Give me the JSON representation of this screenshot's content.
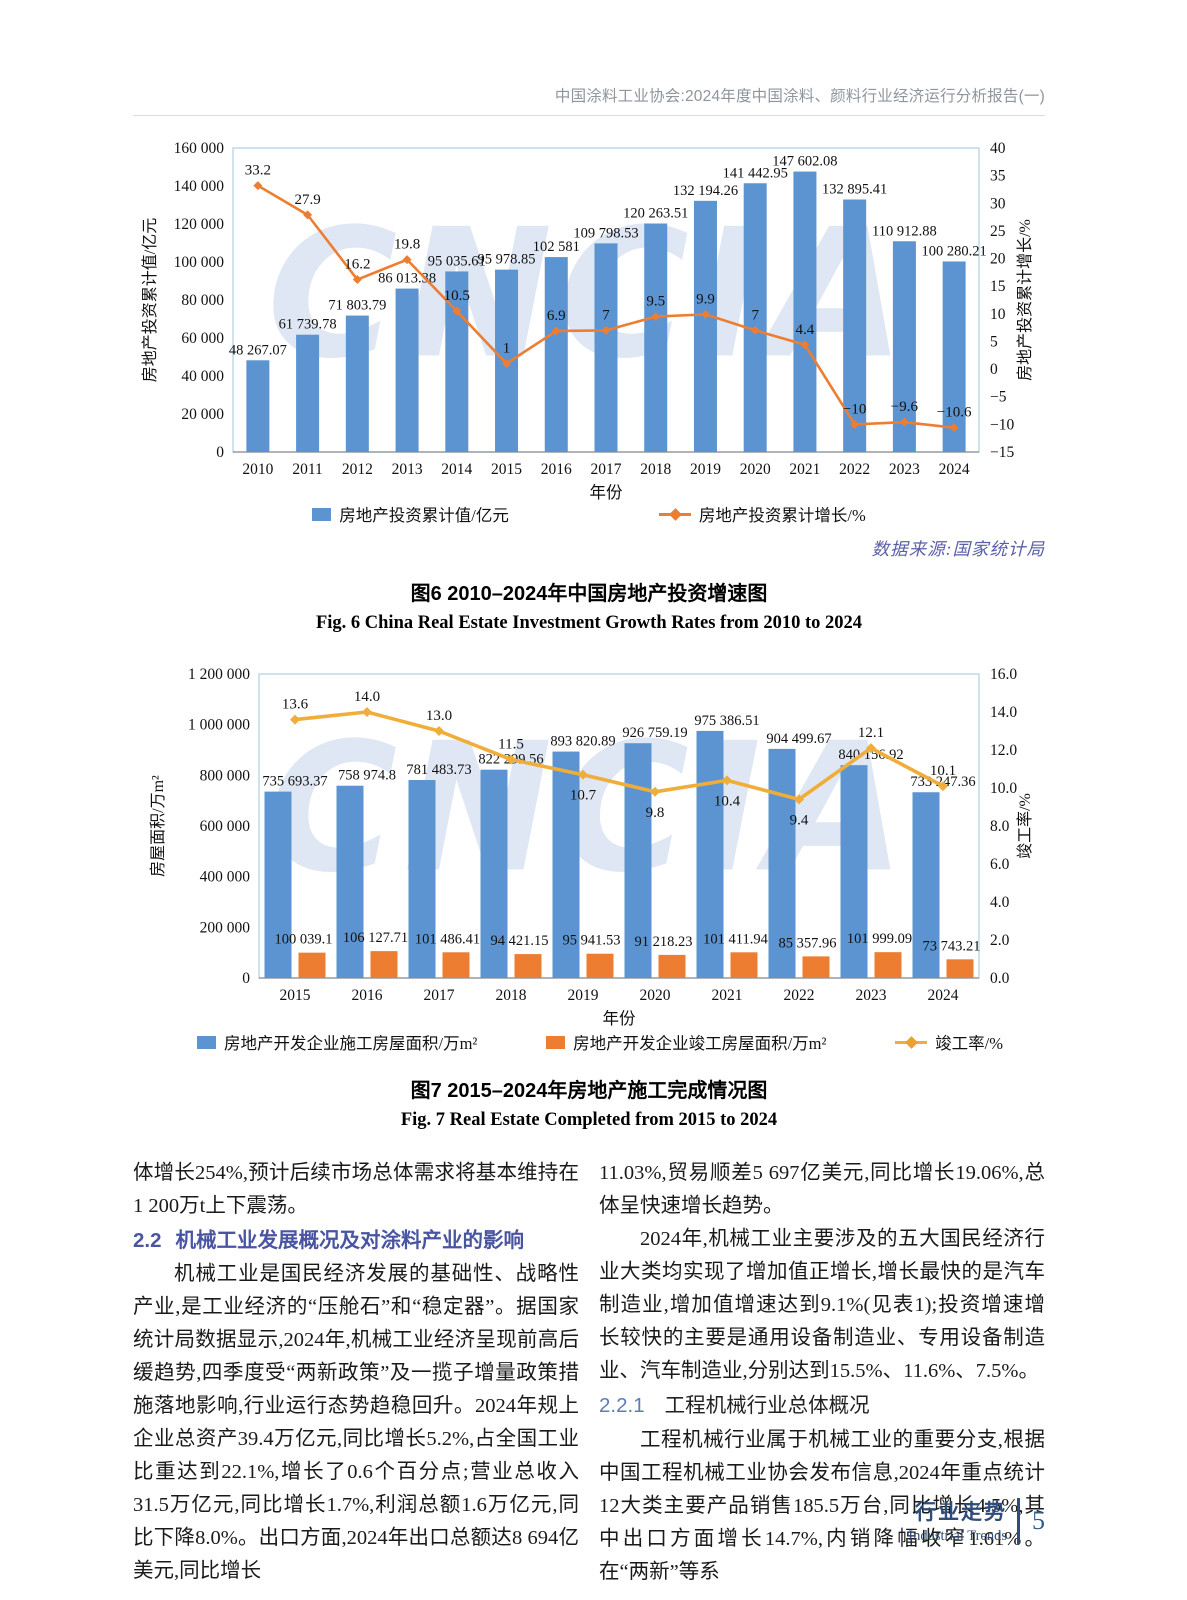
{
  "header": {
    "text": "中国涂料工业协会:2024年度中国涂料、颜料行业经济运行分析报告(一)"
  },
  "watermark": "CNCIA",
  "colors": {
    "bar_blue": "#5b94d0",
    "bar_orange": "#ed7d31",
    "line_orange": "#ed7d31",
    "line_gold": "#f0ad3a",
    "heading_blue": "#4a55a2",
    "source_purple": "#5a5fa7",
    "footer_navy": "#2e4d79",
    "watermark_blue": "#dfe7f4"
  },
  "chart_data": [
    {
      "type": "bar",
      "categories": [
        "2010",
        "2011",
        "2012",
        "2013",
        "2014",
        "2015",
        "2016",
        "2017",
        "2018",
        "2019",
        "2020",
        "2021",
        "2022",
        "2023",
        "2024"
      ],
      "xlabel": "年份",
      "ylabel_left": "房地产投资累计值/亿元",
      "ylabel_right": "房地产投资累计增长/%",
      "ylim_left": [
        0,
        160000
      ],
      "ytick_step_left": 20000,
      "ylim_right": [
        -15,
        40
      ],
      "ytick_step_right": 5,
      "grid": false,
      "legend_position": "bottom",
      "source": "数据来源:国家统计局",
      "series": [
        {
          "name": "房地产投资累计值/亿元",
          "kind": "bar",
          "axis": "left",
          "color": "#5b94d0",
          "values": [
            48267.07,
            61739.78,
            71803.79,
            86013.38,
            95035.61,
            95978.85,
            102581,
            109798.53,
            120263.51,
            132194.26,
            141442.95,
            147602.08,
            132895.41,
            110912.88,
            100280.21
          ],
          "labels": [
            "48 267.07",
            "61 739.78",
            "71 803.79",
            "86 013.38",
            "95 035.61",
            "95 978.85",
            "102 581",
            "109 798.53",
            "120 263.51",
            "132 194.26",
            "141 442.95",
            "147 602.08",
            "132 895.41",
            "110 912.88",
            "100 280.21"
          ]
        },
        {
          "name": "房地产投资累计增长/%",
          "kind": "line",
          "axis": "right",
          "color": "#ed7d31",
          "values": [
            33.2,
            27.9,
            16.2,
            19.8,
            10.5,
            1,
            6.9,
            7,
            9.5,
            9.9,
            7,
            4.4,
            -10,
            -9.6,
            -10.6
          ],
          "labels": [
            "33.2",
            "27.9",
            "16.2",
            "19.8",
            "10.5",
            "1",
            "6.9",
            "7",
            "9.5",
            "9.9",
            "7",
            "4.4",
            "−10",
            "−9.6",
            "−10.6"
          ],
          "label_side": [
            "above",
            "above",
            "above",
            "above",
            "above",
            "above",
            "above",
            "above",
            "above",
            "above",
            "above",
            "above",
            "above",
            "above",
            "above"
          ]
        }
      ]
    },
    {
      "type": "bar",
      "categories": [
        "2015",
        "2016",
        "2017",
        "2018",
        "2019",
        "2020",
        "2021",
        "2022",
        "2023",
        "2024"
      ],
      "xlabel": "年份",
      "ylabel_left": "房屋面积/万m²",
      "ylabel_right": "竣工率/%",
      "ylim_left": [
        0,
        1200000
      ],
      "ytick_step_left": 200000,
      "ylim_right": [
        0,
        16
      ],
      "ytick_step_right": 2,
      "grid": false,
      "legend_position": "bottom",
      "series": [
        {
          "name": "房地产开发企业施工房屋面积/万m²",
          "kind": "bar",
          "axis": "left",
          "color": "#5b94d0",
          "values": [
            735693.37,
            758974.8,
            781483.73,
            822299.56,
            893820.89,
            926759.19,
            975386.51,
            904499.67,
            840156.92,
            733247.36
          ],
          "labels": [
            "735 693.37",
            "758 974.8",
            "781 483.73",
            "822 299.56",
            "893 820.89",
            "926 759.19",
            "975 386.51",
            "904 499.67",
            "840 156.92",
            "733 247.36"
          ]
        },
        {
          "name": "房地产开发企业竣工房屋面积/万m²",
          "kind": "bar",
          "axis": "left",
          "color": "#ed7d31",
          "values": [
            100039.1,
            106127.71,
            101486.41,
            94421.15,
            95941.53,
            91218.23,
            101411.94,
            85357.96,
            101999.09,
            73743.21
          ],
          "labels": [
            "100 039.1",
            "106 127.71",
            "101 486.41",
            "94 421.15",
            "95 941.53",
            "91 218.23",
            "101 411.94",
            "85 357.96",
            "101 999.09",
            "73 743.21"
          ]
        },
        {
          "name": "竣工率/%",
          "kind": "line",
          "axis": "right",
          "color": "#f0ad3a",
          "values": [
            13.6,
            14.0,
            13.0,
            11.5,
            10.7,
            9.8,
            10.4,
            9.4,
            12.1,
            10.1
          ],
          "labels": [
            "13.6",
            "14.0",
            "13.0",
            "11.5",
            "10.7",
            "9.8",
            "10.4",
            "9.4",
            "12.1",
            "10.1"
          ],
          "label_side": [
            "above",
            "above",
            "above",
            "above",
            "below",
            "below",
            "below",
            "below",
            "above",
            "above"
          ]
        }
      ]
    }
  ],
  "figures": {
    "fig6": {
      "caption_cn": "图6  2010–2024年中国房地产投资增速图",
      "caption_en": "Fig. 6  China Real Estate Investment Growth Rates from 2010 to 2024"
    },
    "fig7": {
      "caption_cn": "图7  2015–2024年房地产施工完成情况图",
      "caption_en": "Fig. 7  Real Estate Completed from 2015 to 2024"
    }
  },
  "body": {
    "left": [
      {
        "type": "para",
        "indent": false,
        "text": "体增长254%,预计后续市场总体需求将基本维持在1 200万t上下震荡。"
      },
      {
        "type": "heading",
        "level": "main",
        "number": "2.2",
        "text": "机械工业发展概况及对涂料产业的影响"
      },
      {
        "type": "para",
        "indent": true,
        "text": "机械工业是国民经济发展的基础性、战略性产业,是工业经济的“压舱石”和“稳定器”。据国家统计局数据显示,2024年,机械工业经济呈现前高后缓趋势,四季度受“两新政策”及一揽子增量政策措施落地影响,行业运行态势趋稳回升。2024年规上企业总资产39.4万亿元,同比增长5.2%,占全国工业比重达到22.1%,增长了0.6个百分点;营业总收入31.5万亿元,同比增长1.7%,利润总额1.6万亿元,同比下降8.0%。出口方面,2024年出口总额达8 694亿美元,同比增长"
      }
    ],
    "right": [
      {
        "type": "para",
        "indent": false,
        "text": "11.03%,贸易顺差5 697亿美元,同比增长19.06%,总体呈快速增长趋势。"
      },
      {
        "type": "para",
        "indent": true,
        "text": "2024年,机械工业主要涉及的五大国民经济行业大类均实现了增加值正增长,增长最快的是汽车制造业,增加值增速达到9.1%(见表1);投资增速增长较快的主要是通用设备制造业、专用设备制造业、汽车制造业,分别达到15.5%、11.6%、7.5%。"
      },
      {
        "type": "heading",
        "level": "sub",
        "number": "2.2.1",
        "text": "工程机械行业总体概况"
      },
      {
        "type": "para",
        "indent": true,
        "text": "工程机械行业属于机械工业的重要分支,根据中国工程机械工业协会发布信息,2024年重点统计12大类主要产品销售185.5万台,同比增长4.5%,其中出口方面增长14.7%,内销降幅收窄1.61%。在“两新”等系"
      }
    ]
  },
  "footer": {
    "section_cn": "行业走势",
    "section_en": "Industrial Trends",
    "page_number": "5"
  }
}
